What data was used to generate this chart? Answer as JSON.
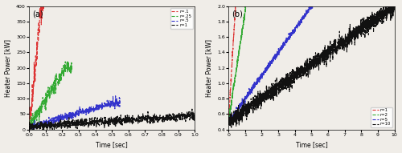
{
  "fig_width": 5.0,
  "fig_height": 1.91,
  "dpi": 100,
  "subplot_a": {
    "label": "(a)",
    "xlabel": "Time [sec]",
    "ylabel": "Heater Power [kW]",
    "xlim": [
      0,
      1.0
    ],
    "ylim": [
      0,
      400
    ],
    "xticks": [
      0,
      0.1,
      0.2,
      0.3,
      0.4,
      0.5,
      0.6,
      0.7,
      0.8,
      0.9,
      1.0
    ],
    "yticks": [
      0,
      50,
      100,
      150,
      200,
      250,
      300,
      350,
      400
    ],
    "legend_labels": [
      "r=.1",
      "r=.25",
      "r=.5",
      "r=1"
    ],
    "legend_colors": [
      "#dd3333",
      "#33aa33",
      "#3333cc",
      "#111111"
    ],
    "legend_loc": "upper right"
  },
  "subplot_b": {
    "label": "(b)",
    "xlabel": "Time [sec]",
    "ylabel": "Heater Power [kW]",
    "xlim": [
      0,
      10.0
    ],
    "ylim": [
      0.4,
      2.0
    ],
    "xticks": [
      0,
      1,
      2,
      3,
      4,
      5,
      6,
      7,
      8,
      9,
      10
    ],
    "yticks": [
      0.4,
      0.6,
      0.8,
      1.0,
      1.2,
      1.4,
      1.6,
      1.8,
      2.0
    ],
    "legend_labels": [
      "r=1",
      "r=2",
      "r=5",
      "r=10"
    ],
    "legend_colors": [
      "#dd3333",
      "#33aa33",
      "#3333cc",
      "#111111"
    ],
    "legend_loc": "lower right"
  },
  "background_color": "#f0ede8",
  "seed": 42
}
